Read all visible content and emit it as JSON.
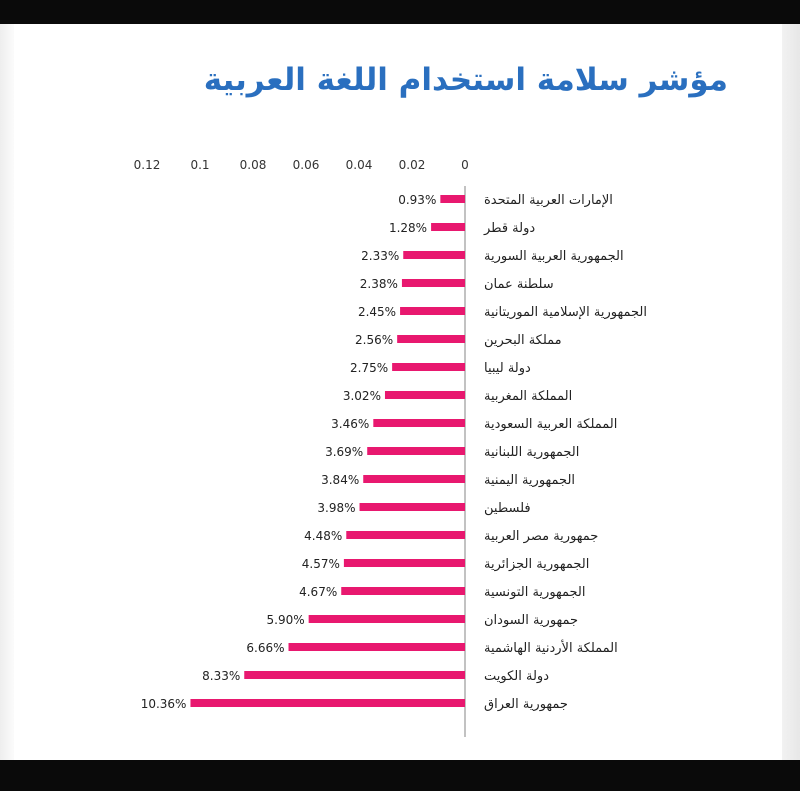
{
  "chart_data": {
    "type": "bar",
    "orientation": "horizontal",
    "title": "مؤشر سلامة استخدام اللغة العربية",
    "xlim": [
      0,
      0.12
    ],
    "x_ticks": [
      "0",
      "0.02",
      "0.04",
      "0.06",
      "0.08",
      "0.1",
      "0.12"
    ],
    "x_tick_values": [
      0,
      0.02,
      0.04,
      0.06,
      0.08,
      0.1,
      0.12
    ],
    "x_direction": "right-to-left",
    "bar_color": "#e8186f",
    "grid": false,
    "categories": [
      "الإمارات العربية المتحدة",
      "دولة قطر",
      "الجمهورية العربية السورية",
      "سلطنة عمان",
      "الجمهورية الإسلامية الموريتانية",
      "مملكة البحرين",
      "دولة ليبيا",
      "المملكة المغربية",
      "المملكة العربية السعودية",
      "الجمهورية اللبنانية",
      "الجمهورية اليمنية",
      "فلسطين",
      "جمهورية مصر العربية",
      "الجمهورية الجزائرية",
      "الجمهورية التونسية",
      "جمهورية السودان",
      "المملكة الأردنية الهاشمية",
      "دولة الكويت",
      "جمهورية العراق"
    ],
    "values": [
      0.0093,
      0.0128,
      0.0233,
      0.0238,
      0.0245,
      0.0256,
      0.0275,
      0.0302,
      0.0346,
      0.0369,
      0.0384,
      0.0398,
      0.0448,
      0.0457,
      0.0467,
      0.059,
      0.0666,
      0.0833,
      0.1036
    ],
    "data_labels": [
      "0.93%",
      "1.28%",
      "2.33%",
      "2.38%",
      "2.45%",
      "2.56%",
      "2.75%",
      "3.02%",
      "3.46%",
      "3.69%",
      "3.84%",
      "3.98%",
      "4.48%",
      "4.57%",
      "4.67%",
      "5.90%",
      "6.66%",
      "8.33%",
      "10.36%"
    ]
  }
}
